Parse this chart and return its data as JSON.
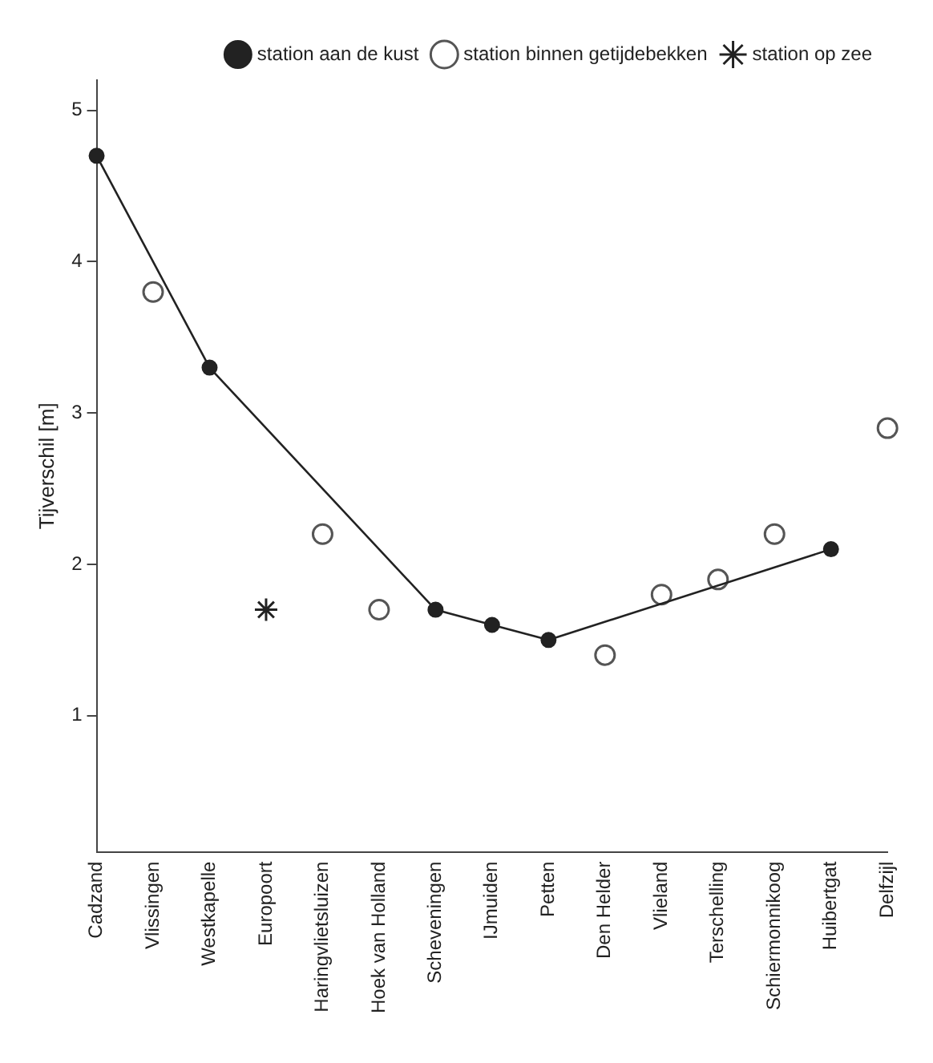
{
  "chart_data": {
    "type": "line",
    "categories": [
      "Cadzand",
      "Vlissingen",
      "Westkapelle",
      "Europoort",
      "Haringvlietsluizen",
      "Hoek van Holland",
      "Scheveningen",
      "IJmuiden",
      "Petten",
      "Den Helder",
      "Vlieland",
      "Terschelling",
      "Schiermonnikoog",
      "Huibertgat",
      "Delfzijl"
    ],
    "ylabel": "Tijverschil [m]",
    "ylim": [
      0.1,
      5.2
    ],
    "yticks": [
      1,
      2,
      3,
      4,
      5
    ],
    "grid": false,
    "legend": "top right",
    "series": [
      {
        "name": "station aan de kust",
        "type": "line",
        "marker": "circle",
        "line_style": "solid",
        "color": "#222222",
        "values": [
          4.7,
          null,
          3.3,
          null,
          null,
          null,
          1.7,
          1.6,
          1.5,
          null,
          null,
          null,
          null,
          2.1,
          null
        ]
      },
      {
        "name": "station binnen getijdebekken",
        "type": "scatter",
        "marker": "circle",
        "color": "#555555",
        "values": [
          null,
          3.8,
          null,
          null,
          2.2,
          1.7,
          null,
          null,
          null,
          1.4,
          1.8,
          1.9,
          2.2,
          null,
          2.9
        ]
      },
      {
        "name": "station op zee",
        "type": "scatter",
        "marker": "cross",
        "color": "#222222",
        "values": [
          null,
          null,
          null,
          1.7,
          null,
          null,
          null,
          null,
          null,
          null,
          null,
          null,
          null,
          null,
          null
        ]
      }
    ]
  }
}
